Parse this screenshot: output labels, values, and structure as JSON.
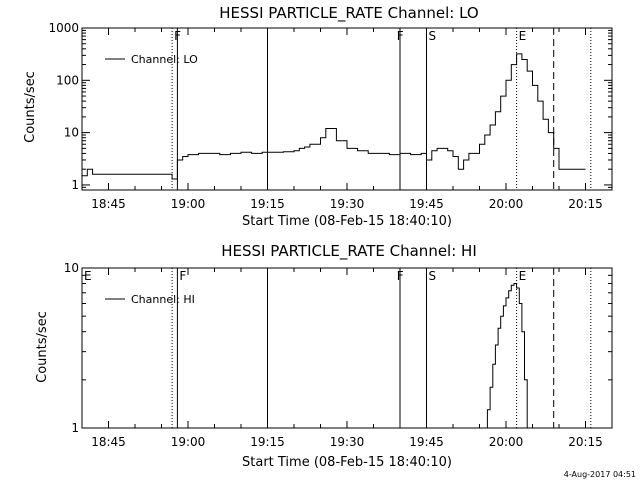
{
  "timestamp": "4-Aug-2017 04:51",
  "chart_data": [
    {
      "type": "line",
      "title": "HESSI PARTICLE_RATE Channel: LO",
      "xlabel": "Start Time (08-Feb-15 18:40:10)",
      "ylabel": "Counts/sec",
      "yscale": "log",
      "xlim": [
        "18:40",
        "20:20"
      ],
      "ylim": [
        0.8,
        1000
      ],
      "xticks": [
        "18:45",
        "19:00",
        "19:15",
        "19:30",
        "19:45",
        "20:00",
        "20:15"
      ],
      "yticks": [
        "1",
        "10",
        "100",
        "1000"
      ],
      "legend": {
        "label": "Channel: LO",
        "placement": "top-left"
      },
      "flags": [
        {
          "label": "F",
          "time": "18:57"
        },
        {
          "label": "F",
          "time": "19:39"
        },
        {
          "label": "S",
          "time": "19:45"
        },
        {
          "label": "E",
          "time": "20:02"
        }
      ],
      "markers": [
        {
          "time": "18:57",
          "style": "dotted"
        },
        {
          "time": "18:58",
          "style": "solid"
        },
        {
          "time": "19:15",
          "style": "solid"
        },
        {
          "time": "19:40",
          "style": "solid"
        },
        {
          "time": "19:45",
          "style": "dashed"
        },
        {
          "time": "19:45",
          "style": "solid"
        },
        {
          "time": "20:02",
          "style": "dotted"
        },
        {
          "time": "20:09",
          "style": "dashed"
        },
        {
          "time": "20:16",
          "style": "dotted"
        }
      ],
      "series": [
        {
          "name": "Channel: LO",
          "x": [
            "18:40",
            "18:41",
            "18:42",
            "18:43",
            "18:44",
            "18:45",
            "18:46",
            "18:47",
            "18:48",
            "18:49",
            "18:50",
            "18:51",
            "18:52",
            "18:53",
            "18:54",
            "18:55",
            "18:56",
            "18:57",
            "18:58",
            "18:59",
            "19:00",
            "19:02",
            "19:04",
            "19:06",
            "19:08",
            "19:10",
            "19:12",
            "19:14",
            "19:16",
            "19:18",
            "19:20",
            "19:21",
            "19:22",
            "19:23",
            "19:24",
            "19:25",
            "19:26",
            "19:28",
            "19:30",
            "19:32",
            "19:34",
            "19:36",
            "19:38",
            "19:40",
            "19:42",
            "19:44",
            "19:45",
            "19:46",
            "19:47",
            "19:48",
            "19:49",
            "19:50",
            "19:51",
            "19:52",
            "19:53",
            "19:54",
            "19:55",
            "19:56",
            "19:57",
            "19:58",
            "19:59",
            "20:00",
            "20:01",
            "20:02",
            "20:03",
            "20:04",
            "20:05",
            "20:06",
            "20:07",
            "20:08",
            "20:09",
            "20:10",
            "20:11",
            "20:12",
            "20:13",
            "20:14",
            "20:15"
          ],
          "y": [
            1.5,
            2,
            1.6,
            1.6,
            1.6,
            1.6,
            1.6,
            1.6,
            1.6,
            1.6,
            1.6,
            1.6,
            1.6,
            1.6,
            1.6,
            1.6,
            1.6,
            1.3,
            3,
            3.5,
            3.8,
            4,
            4,
            3.8,
            4,
            4.2,
            4,
            4.2,
            4.2,
            4.3,
            4.5,
            5,
            5.3,
            6,
            6,
            8,
            12,
            7,
            5,
            4.5,
            4,
            4,
            3.8,
            4,
            3.8,
            4,
            3,
            4.5,
            5,
            5,
            4.5,
            3.5,
            2,
            3,
            4,
            4,
            6,
            9,
            14,
            25,
            50,
            100,
            200,
            320,
            250,
            150,
            80,
            40,
            18,
            10,
            5,
            2,
            2,
            2,
            2,
            2,
            2
          ]
        }
      ]
    },
    {
      "type": "line",
      "title": "HESSI PARTICLE_RATE Channel: HI",
      "xlabel": "Start Time (08-Feb-15 18:40:10)",
      "ylabel": "Counts/sec",
      "yscale": "log",
      "xlim": [
        "18:40",
        "20:20"
      ],
      "ylim": [
        1,
        10
      ],
      "xticks": [
        "18:45",
        "19:00",
        "19:15",
        "19:30",
        "19:45",
        "20:00",
        "20:15"
      ],
      "yticks": [
        "1",
        "10"
      ],
      "legend": {
        "label": "Channel: HI",
        "placement": "top-left"
      },
      "flags": [
        {
          "label": "E",
          "time": "18:40"
        },
        {
          "label": "F",
          "time": "18:58"
        },
        {
          "label": "F",
          "time": "19:39"
        },
        {
          "label": "S",
          "time": "19:45"
        },
        {
          "label": "E",
          "time": "20:02"
        }
      ],
      "markers": [
        {
          "time": "18:57",
          "style": "dotted"
        },
        {
          "time": "18:58",
          "style": "solid"
        },
        {
          "time": "19:15",
          "style": "solid"
        },
        {
          "time": "19:40",
          "style": "solid"
        },
        {
          "time": "19:45",
          "style": "dashed"
        },
        {
          "time": "19:45",
          "style": "solid"
        },
        {
          "time": "20:02",
          "style": "dotted"
        },
        {
          "time": "20:09",
          "style": "dashed"
        },
        {
          "time": "20:16",
          "style": "dotted"
        }
      ],
      "series": [
        {
          "name": "Channel: HI",
          "x": [
            "19:56",
            "19:56.5",
            "19:57",
            "19:57.5",
            "19:58",
            "19:58.5",
            "19:59",
            "19:59.5",
            "20:00",
            "20:00.5",
            "20:01",
            "20:01.5",
            "20:02",
            "20:02.5",
            "20:03",
            "20:03.5",
            "20:04"
          ],
          "y": [
            1,
            1.3,
            1.8,
            2.5,
            3.3,
            4.2,
            5,
            5.8,
            6.5,
            7.2,
            7.8,
            8,
            7.5,
            6,
            4,
            2,
            1
          ]
        }
      ]
    }
  ]
}
